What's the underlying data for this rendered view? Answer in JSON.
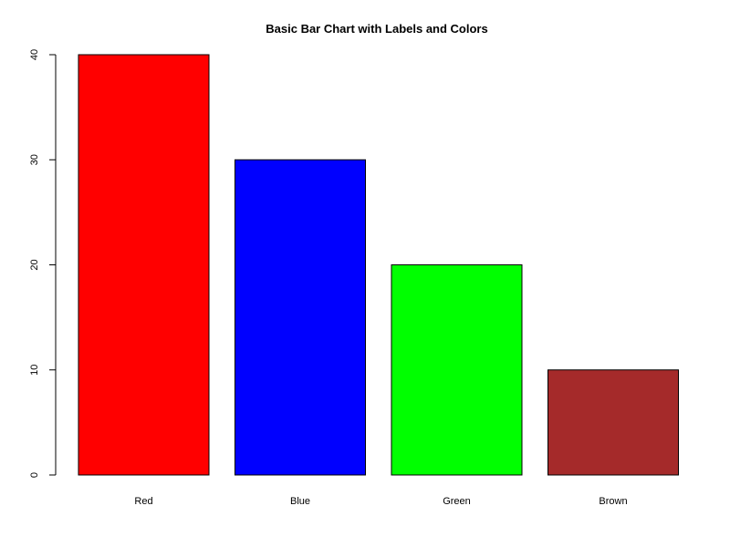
{
  "chart_data": {
    "type": "bar",
    "title": "Basic Bar Chart with Labels and Colors",
    "xlabel": "",
    "ylabel": "",
    "categories": [
      "Red",
      "Blue",
      "Green",
      "Brown"
    ],
    "values": [
      40,
      30,
      20,
      10
    ],
    "colors": [
      "#ff0000",
      "#0000ff",
      "#00ff00",
      "#a52a2a"
    ],
    "ylim": [
      0,
      40
    ],
    "yticks": [
      0,
      10,
      20,
      30,
      40
    ],
    "grid": false,
    "legend": "none"
  }
}
